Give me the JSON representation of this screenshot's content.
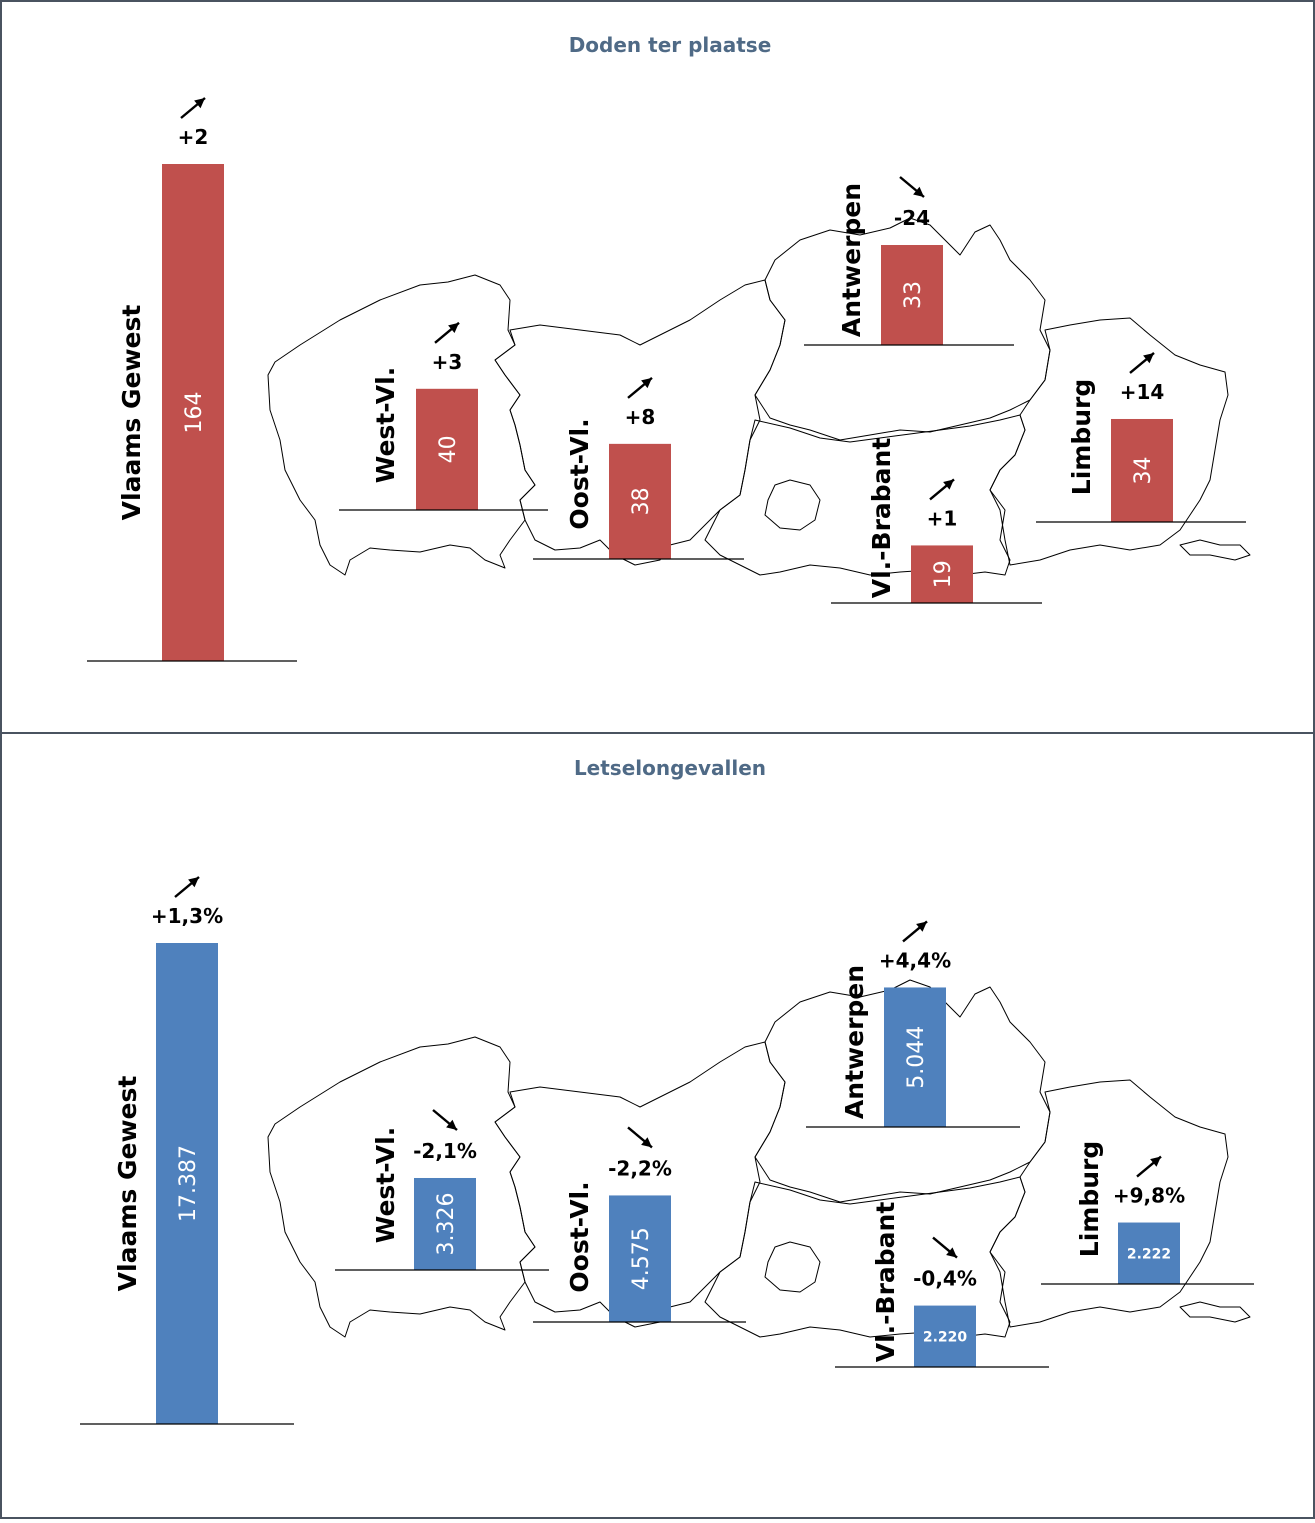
{
  "colors": {
    "red": "#c0504d",
    "blue": "#4f81bd",
    "title": "#4f6a86",
    "border": "#4a5360"
  },
  "chart_data": [
    {
      "type": "bar",
      "title": "Doden ter plaatse",
      "bars": [
        {
          "region": "Vlaams Gewest",
          "value": 164,
          "label": "164",
          "change": "+2",
          "trend": "up"
        },
        {
          "region": "West-Vl.",
          "value": 40,
          "label": "40",
          "change": "+3",
          "trend": "up"
        },
        {
          "region": "Oost-Vl.",
          "value": 38,
          "label": "38",
          "change": "+8",
          "trend": "up"
        },
        {
          "region": "Antwerpen",
          "value": 33,
          "label": "33",
          "change": "-24",
          "trend": "down"
        },
        {
          "region": "Vl.-Brabant",
          "value": 19,
          "label": "19",
          "change": "+1",
          "trend": "up"
        },
        {
          "region": "Limburg",
          "value": 34,
          "label": "34",
          "change": "+14",
          "trend": "up"
        }
      ]
    },
    {
      "type": "bar",
      "title": "Letselongevallen",
      "bars": [
        {
          "region": "Vlaams Gewest",
          "value": 17387,
          "label": "17.387",
          "change": "+1,3%",
          "trend": "up"
        },
        {
          "region": "West-Vl.",
          "value": 3326,
          "label": "3.326",
          "change": "-2,1%",
          "trend": "down"
        },
        {
          "region": "Oost-Vl.",
          "value": 4575,
          "label": "4.575",
          "change": "-2,2%",
          "trend": "down"
        },
        {
          "region": "Antwerpen",
          "value": 5044,
          "label": "5.044",
          "change": "+4,4%",
          "trend": "up"
        },
        {
          "region": "Vl.-Brabant",
          "value": 2220,
          "label": "2.220",
          "change": "-0,4%",
          "trend": "down"
        },
        {
          "region": "Limburg",
          "value": 2222,
          "label": "2.222",
          "change": "+9,8%",
          "trend": "up"
        }
      ]
    }
  ]
}
